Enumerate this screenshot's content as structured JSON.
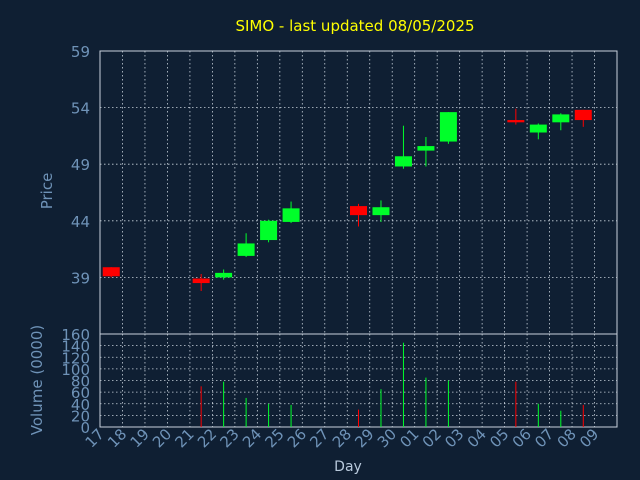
{
  "chart_data": {
    "type": "candlestick",
    "title": "SIMO - last updated 08/05/2025",
    "xlabel": "Day",
    "ylabel": "Price",
    "volume_label": "Volume (0000)",
    "grid": true,
    "colors": {
      "background": "#0f1f33",
      "up": "#00ff2a",
      "down": "#ff0000",
      "title": "#ffff00",
      "axis_text": "#6f93b8",
      "grid": "#c8d2dc"
    },
    "price_ylim": [
      34,
      59
    ],
    "price_ticks": [
      39,
      44,
      49,
      54,
      59
    ],
    "volume_ylim": [
      0,
      160
    ],
    "volume_ticks": [
      0,
      20,
      40,
      60,
      80,
      100,
      120,
      140,
      160
    ],
    "days": [
      "17",
      "18",
      "19",
      "20",
      "21",
      "22",
      "23",
      "24",
      "25",
      "26",
      "27",
      "28",
      "29",
      "30",
      "01",
      "02",
      "03",
      "04",
      "05",
      "06",
      "07",
      "08",
      "09"
    ],
    "candles": [
      {
        "day": "17",
        "open": 39.9,
        "high": 39.9,
        "low": 39.0,
        "close": 39.1,
        "volume": 0
      },
      {
        "day": "21",
        "open": 38.9,
        "high": 39.3,
        "low": 37.8,
        "close": 38.5,
        "volume": 70
      },
      {
        "day": "22",
        "open": 39.0,
        "high": 39.7,
        "low": 38.8,
        "close": 39.4,
        "volume": 78
      },
      {
        "day": "23",
        "open": 40.9,
        "high": 42.9,
        "low": 40.8,
        "close": 42.0,
        "volume": 50
      },
      {
        "day": "24",
        "open": 42.3,
        "high": 44.1,
        "low": 42.1,
        "close": 44.0,
        "volume": 40
      },
      {
        "day": "25",
        "open": 43.9,
        "high": 45.7,
        "low": 43.8,
        "close": 45.1,
        "volume": 38
      },
      {
        "day": "28",
        "open": 45.3,
        "high": 45.5,
        "low": 43.5,
        "close": 44.5,
        "volume": 30
      },
      {
        "day": "29",
        "open": 44.5,
        "high": 45.8,
        "low": 43.9,
        "close": 45.2,
        "volume": 65
      },
      {
        "day": "30",
        "open": 48.8,
        "high": 52.4,
        "low": 48.6,
        "close": 49.7,
        "volume": 145
      },
      {
        "day": "01",
        "open": 50.2,
        "high": 51.4,
        "low": 48.8,
        "close": 50.6,
        "volume": 85
      },
      {
        "day": "02",
        "open": 51.0,
        "high": 53.6,
        "low": 50.8,
        "close": 53.6,
        "volume": 80
      },
      {
        "day": "05",
        "open": 52.9,
        "high": 53.9,
        "low": 52.5,
        "close": 52.7,
        "volume": 78
      },
      {
        "day": "06",
        "open": 51.8,
        "high": 52.6,
        "low": 51.2,
        "close": 52.5,
        "volume": 40
      },
      {
        "day": "07",
        "open": 52.7,
        "high": 53.5,
        "low": 52.0,
        "close": 53.4,
        "volume": 28
      },
      {
        "day": "08",
        "open": 53.8,
        "high": 53.8,
        "low": 52.3,
        "close": 52.9,
        "volume": 38
      }
    ]
  }
}
